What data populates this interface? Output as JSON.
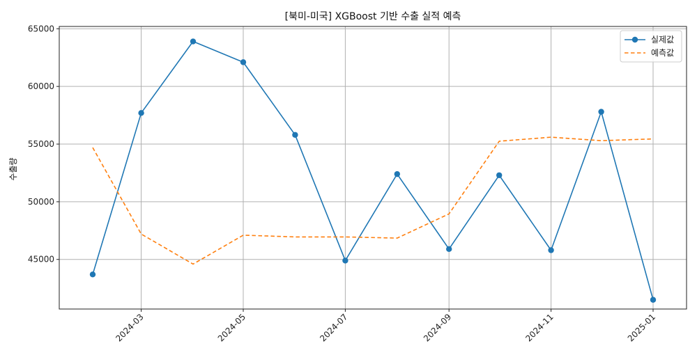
{
  "chart_data": {
    "type": "line",
    "title": "[북미-미국] XGBoost 기반 수출 실적 예측",
    "xlabel": "",
    "ylabel": "수출량",
    "x_ticks": [
      "2024-03",
      "2024-05",
      "2024-07",
      "2024-09",
      "2024-11",
      "2025-01"
    ],
    "y_ticks": [
      45000,
      50000,
      55000,
      60000,
      65000
    ],
    "ylim": [
      40700,
      65200
    ],
    "xlim": [
      "2024-01-12",
      "2025-01-21"
    ],
    "grid": true,
    "legend_position": "top-right",
    "x": [
      "2024-02-01",
      "2024-03-01",
      "2024-04-01",
      "2024-05-01",
      "2024-06-01",
      "2024-07-01",
      "2024-08-01",
      "2024-09-01",
      "2024-10-01",
      "2024-11-01",
      "2024-12-01",
      "2025-01-01"
    ],
    "series": [
      {
        "name": "실제값",
        "color": "#1f77b4",
        "style": "solid",
        "marker": "circle",
        "values": [
          43700,
          57700,
          63900,
          62100,
          55800,
          44900,
          52400,
          45900,
          52300,
          45800,
          57800,
          41500
        ]
      },
      {
        "name": "예측값",
        "color": "#ff7f0e",
        "style": "dashed",
        "marker": "none",
        "values": [
          54700,
          47200,
          44600,
          47100,
          46950,
          46950,
          46850,
          48950,
          55250,
          55600,
          55300,
          55450
        ]
      }
    ]
  }
}
